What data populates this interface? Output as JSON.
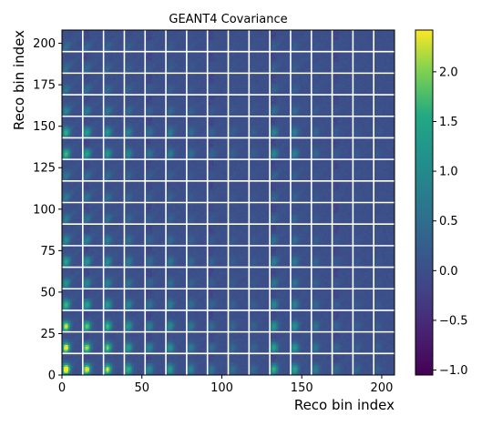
{
  "chart_data": {
    "type": "heatmap",
    "title": "GEANT4 Covariance",
    "xlabel": "Reco bin index",
    "ylabel": "Reco bin index",
    "xlim": [
      0,
      208
    ],
    "ylim": [
      0,
      208
    ],
    "x_ticks": [
      0,
      50,
      100,
      150,
      200
    ],
    "y_ticks": [
      0,
      25,
      50,
      75,
      100,
      125,
      150,
      175,
      200
    ],
    "block_boundaries": [
      13,
      26,
      39,
      52,
      65,
      78,
      91,
      104,
      117,
      130,
      143,
      156,
      169,
      182,
      195
    ],
    "grid_line_color": "#ffffff",
    "colormap": "viridis",
    "colorbar": {
      "vmin": -1.05,
      "vmax": 2.42,
      "ticks": [
        -1.0,
        -0.5,
        0.0,
        0.5,
        1.0,
        1.5,
        2.0
      ],
      "tick_labels": [
        "−1.0",
        "−0.5",
        "0.0",
        "0.5",
        "1.0",
        "1.5",
        "2.0"
      ]
    },
    "base_value": 0.0,
    "pattern": "periodic bright bands in blocks near reco bins 0-52 and 130-156, peak value about 2.4 near the bottom-left"
  }
}
